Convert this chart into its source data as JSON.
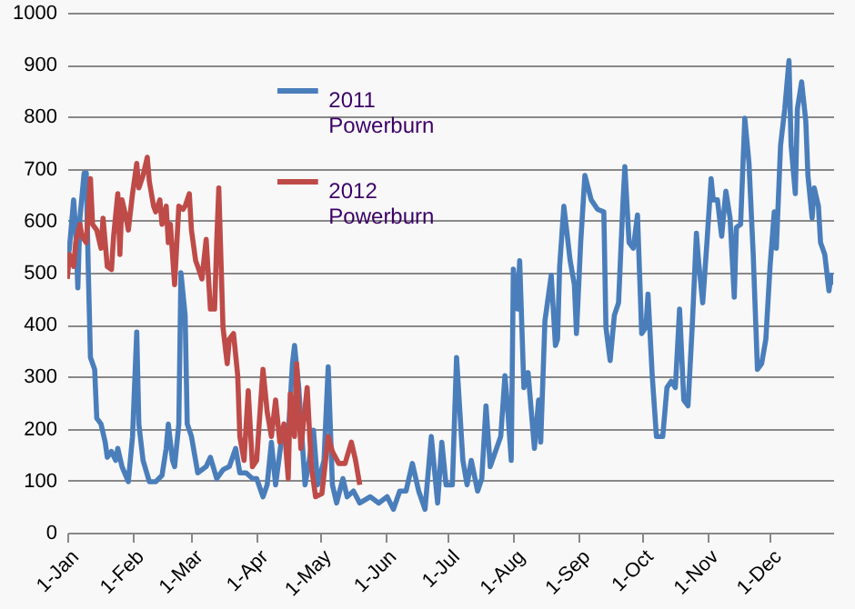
{
  "chart_data": {
    "type": "line",
    "xlim": [
      "--01-01",
      "--12-31"
    ],
    "xticks": [
      {
        "value": "--01-01",
        "label": "1-Jan"
      },
      {
        "value": "--02-01",
        "label": "1-Feb"
      },
      {
        "value": "--03-01",
        "label": "1-Mar"
      },
      {
        "value": "--04-01",
        "label": "1-Apr"
      },
      {
        "value": "--05-01",
        "label": "1-May"
      },
      {
        "value": "--06-01",
        "label": "1-Jun"
      },
      {
        "value": "--07-01",
        "label": "1-Jul"
      },
      {
        "value": "--08-01",
        "label": "1-Aug"
      },
      {
        "value": "--09-01",
        "label": "1-Sep"
      },
      {
        "value": "--10-01",
        "label": "1-Oct"
      },
      {
        "value": "--11-01",
        "label": "1-Nov"
      },
      {
        "value": "--12-01",
        "label": "1-Dec"
      }
    ],
    "ylim": [
      0,
      1000
    ],
    "yticks": [
      0,
      100,
      200,
      300,
      400,
      500,
      600,
      700,
      800,
      900,
      1000
    ],
    "grid": "y",
    "legend": "top",
    "line_style": "solid",
    "marker": "none",
    "series": [
      {
        "name": "2011 Powerburn",
        "color": "#4a7ebb",
        "x": [
          "--01-01",
          "--01-02",
          "--01-04",
          "--01-05",
          "--01-06",
          "--01-07",
          "--01-09",
          "--01-10",
          "--01-11",
          "--01-12",
          "--01-14",
          "--01-15",
          "--01-17",
          "--01-19",
          "--01-20",
          "--01-22",
          "--01-24",
          "--01-25",
          "--01-27",
          "--01-30",
          "--02-01",
          "--02-03",
          "--02-04",
          "--02-06",
          "--02-09",
          "--02-12",
          "--02-15",
          "--02-17",
          "--02-18",
          "--02-20",
          "--02-21",
          "--02-23",
          "--02-24",
          "--02-26",
          "--02-27",
          "--03-01",
          "--03-04",
          "--03-08",
          "--03-10",
          "--03-13",
          "--03-16",
          "--03-19",
          "--03-22",
          "--03-24",
          "--03-27",
          "--03-30",
          "--04-01",
          "--04-04",
          "--04-06",
          "--04-08",
          "--04-10",
          "--04-13",
          "--04-16",
          "--04-18",
          "--04-19",
          "--04-21",
          "--04-24",
          "--04-26",
          "--04-28",
          "--04-30",
          "--05-03",
          "--05-05",
          "--05-07",
          "--05-09",
          "--05-12",
          "--05-14",
          "--05-17",
          "--05-20",
          "--05-25",
          "--05-29",
          "--06-02",
          "--06-05",
          "--06-08",
          "--06-11",
          "--06-14",
          "--06-17",
          "--06-20",
          "--06-23",
          "--06-26",
          "--06-28",
          "--06-30",
          "--07-03",
          "--07-05",
          "--07-08",
          "--07-10",
          "--07-12",
          "--07-15",
          "--07-17",
          "--07-19",
          "--07-21",
          "--07-24",
          "--07-26",
          "--07-28",
          "--07-29",
          "--07-31",
          "--08-01",
          "--08-03",
          "--08-04",
          "--08-06",
          "--08-08",
          "--08-11",
          "--08-13",
          "--08-14",
          "--08-16",
          "--08-19",
          "--08-21",
          "--08-22",
          "--08-23",
          "--08-25",
          "--08-28",
          "--08-30",
          "--08-31",
          "--09-02",
          "--09-04",
          "--09-07",
          "--09-10",
          "--09-13",
          "--09-14",
          "--09-16",
          "--09-18",
          "--09-20",
          "--09-22",
          "--09-23",
          "--09-25",
          "--09-27",
          "--09-29",
          "--10-01",
          "--10-03",
          "--10-04",
          "--10-06",
          "--10-08",
          "--10-11",
          "--10-13",
          "--10-15",
          "--10-17",
          "--10-19",
          "--10-21",
          "--10-23",
          "--10-25",
          "--10-27",
          "--10-28",
          "--10-30",
          "--11-01",
          "--11-03",
          "--11-04",
          "--11-06",
          "--11-08",
          "--11-10",
          "--11-12",
          "--11-14",
          "--11-15",
          "--11-17",
          "--11-19",
          "--11-21",
          "--11-23",
          "--11-25",
          "--11-27",
          "--11-29",
          "--12-01",
          "--12-03",
          "--12-04",
          "--12-06",
          "--12-08",
          "--12-10",
          "--12-11",
          "--12-13",
          "--12-14",
          "--12-16",
          "--12-18",
          "--12-19",
          "--12-21",
          "--12-22",
          "--12-24",
          "--12-25",
          "--12-27",
          "--12-29",
          "--12-30",
          "--12-31"
        ],
        "values": [
          523,
          547,
          640,
          582,
          471,
          605,
          692,
          692,
          500,
          337,
          314,
          220,
          209,
          174,
          145,
          156,
          139,
          162,
          127,
          98,
          185,
          386,
          209,
          139,
          98,
          98,
          110,
          162,
          209,
          139,
          127,
          209,
          500,
          418,
          209,
          185,
          115,
          127,
          145,
          104,
          121,
          127,
          162,
          115,
          115,
          104,
          104,
          69,
          92,
          174,
          92,
          185,
          185,
          325,
          360,
          279,
          92,
          139,
          197,
          92,
          139,
          319,
          92,
          57,
          104,
          69,
          80,
          57,
          69,
          57,
          69,
          45,
          80,
          80,
          133,
          80,
          45,
          185,
          57,
          174,
          92,
          92,
          337,
          139,
          92,
          139,
          80,
          104,
          244,
          127,
          162,
          185,
          302,
          255,
          139,
          507,
          430,
          523,
          279,
          308,
          162,
          255,
          174,
          407,
          495,
          360,
          372,
          512,
          628,
          523,
          477,
          383,
          558,
          687,
          640,
          622,
          617,
          395,
          331,
          418,
          442,
          628,
          704,
          558,
          547,
          611,
          383,
          395,
          459,
          302,
          185,
          185,
          279,
          291,
          279,
          430,
          255,
          244,
          395,
          576,
          523,
          442,
          558,
          681,
          640,
          640,
          570,
          657,
          605,
          453,
          587,
          593,
          797,
          710,
          535,
          314,
          325,
          372,
          512,
          617,
          547,
          745,
          815,
          908,
          745,
          652,
          815,
          867,
          791,
          687,
          605,
          663,
          628,
          558,
          535,
          465,
          495,
          477
        ]
      },
      {
        "name": "2012 Powerburn",
        "color": "#be4b48",
        "x": [
          "--01-01",
          "--01-02",
          "--01-04",
          "--01-05",
          "--01-07",
          "--01-08",
          "--01-10",
          "--01-12",
          "--01-13",
          "--01-15",
          "--01-17",
          "--01-18",
          "--01-20",
          "--01-22",
          "--01-23",
          "--01-25",
          "--01-26",
          "--01-27",
          "--01-29",
          "--01-30",
          "--02-01",
          "--02-03",
          "--02-04",
          "--02-06",
          "--02-08",
          "--02-09",
          "--02-11",
          "--02-12",
          "--02-14",
          "--02-15",
          "--02-17",
          "--02-18",
          "--02-19",
          "--02-21",
          "--02-23",
          "--02-25",
          "--02-26",
          "--02-28",
          "--03-01",
          "--03-03",
          "--03-04",
          "--03-06",
          "--03-08",
          "--03-10",
          "--03-12",
          "--03-13",
          "--03-14",
          "--03-16",
          "--03-18",
          "--03-19",
          "--03-21",
          "--03-23",
          "--03-24",
          "--03-26",
          "--03-28",
          "--03-30",
          "--04-01",
          "--04-04",
          "--04-06",
          "--04-08",
          "--04-10",
          "--04-12",
          "--04-14",
          "--04-16",
          "--04-17",
          "--04-19",
          "--04-20",
          "--04-22",
          "--04-25",
          "--04-27",
          "--04-29",
          "--05-02",
          "--05-05",
          "--05-07",
          "--05-10",
          "--05-13",
          "--05-16",
          "--05-18",
          "--05-20"
        ],
        "values": [
          488,
          535,
          512,
          558,
          593,
          570,
          558,
          681,
          593,
          582,
          547,
          605,
          512,
          506,
          570,
          652,
          535,
          640,
          605,
          582,
          652,
          710,
          663,
          687,
          722,
          675,
          628,
          617,
          640,
          593,
          628,
          558,
          593,
          477,
          628,
          622,
          628,
          652,
          582,
          523,
          512,
          488,
          564,
          430,
          430,
          558,
          663,
          395,
          325,
          372,
          383,
          302,
          185,
          139,
          273,
          127,
          139,
          314,
          232,
          185,
          255,
          174,
          209,
          104,
          267,
          185,
          325,
          162,
          279,
          127,
          69,
          75,
          185,
          156,
          133,
          133,
          174,
          139,
          92
        ]
      }
    ]
  }
}
